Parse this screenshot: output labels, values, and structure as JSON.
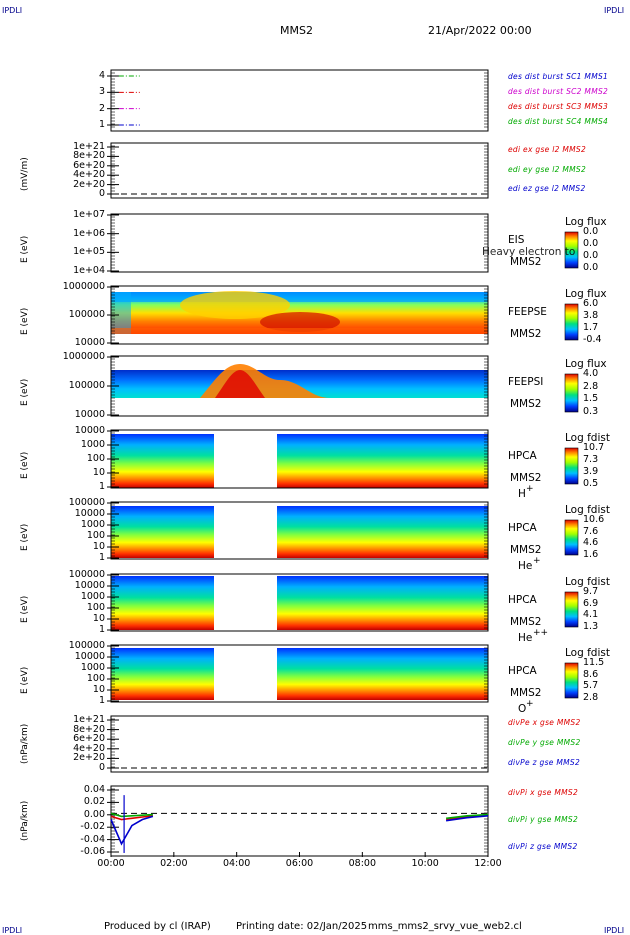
{
  "corners": {
    "tl": "IPDLI",
    "tr": "IPDLI",
    "bl": "IPDLI",
    "br": "IPDLI"
  },
  "header": {
    "mission": "MMS2",
    "date": "21/Apr/2022 00:00"
  },
  "footer": {
    "produced_by": "Produced by cl (IRAP)",
    "printing_date": "Printing date: 02/Jan/2025",
    "file": "mms_mms2_srvy_vue_web2.cl"
  },
  "colors": {
    "blue": "#0000cc",
    "red": "#dd0000",
    "green": "#00aa00",
    "magenta": "#cc00cc"
  },
  "x_ticks": [
    "00:00",
    "02:00",
    "04:00",
    "06:00",
    "08:00",
    "10:00",
    "12:00"
  ],
  "panels": {
    "des": {
      "y_ticks": [
        "4",
        "3",
        "2",
        "1"
      ],
      "legend": [
        "des dist burst SC1 MMS1",
        "des dist burst SC2 MMS2",
        "des dist burst SC3 MMS3",
        "des dist burst SC4 MMS4"
      ],
      "legend_colors": [
        "#0000cc",
        "#cc00cc",
        "#dd0000",
        "#00aa00"
      ]
    },
    "edi": {
      "ylabel": "(mV/m)",
      "y_ticks": [
        "1e+21",
        "8e+20",
        "6e+20",
        "4e+20",
        "2e+20",
        "0"
      ],
      "legend": [
        "edi ex gse l2 MMS2",
        "edi ey gse l2 MMS2",
        "edi ez gse l2 MMS2"
      ],
      "legend_colors": [
        "#dd0000",
        "#00aa00",
        "#0000cc"
      ]
    },
    "eis": {
      "ylabel": "E (eV)",
      "y_ticks": [
        "1e+07",
        "1e+06",
        "1e+05",
        "1e+04"
      ],
      "overlay": "Heavy electron to",
      "name": "EIS",
      "sc": "MMS2",
      "cb_title": "Log flux",
      "cb_values": [
        "0.0",
        "0.0",
        "0.0",
        "0.0"
      ]
    },
    "feepse": {
      "ylabel": "E (eV)",
      "y_ticks": [
        "1000000",
        "100000",
        "10000"
      ],
      "name": "FEEPSE",
      "sc": "MMS2",
      "cb_title": "Log flux",
      "cb_values": [
        "6.0",
        "3.8",
        "1.7",
        "-0.4"
      ]
    },
    "feepsi": {
      "ylabel": "E (eV)",
      "y_ticks": [
        "1000000",
        "100000",
        "10000"
      ],
      "name": "FEEPSI",
      "sc": "MMS2",
      "cb_title": "Log flux",
      "cb_values": [
        "4.0",
        "2.8",
        "1.5",
        "0.3"
      ]
    },
    "hpca_h": {
      "ylabel": "E (eV)",
      "y_ticks": [
        "10000",
        "1000",
        "100",
        "10",
        "1"
      ],
      "name": "HPCA",
      "sc": "MMS2",
      "species": "H",
      "charge": "+",
      "cb_title": "Log fdist",
      "cb_values": [
        "10.7",
        "7.3",
        "3.9",
        "0.5"
      ]
    },
    "hpca_he": {
      "ylabel": "E (eV)",
      "y_ticks": [
        "100000",
        "10000",
        "1000",
        "100",
        "10",
        "1"
      ],
      "name": "HPCA",
      "sc": "MMS2",
      "species": "He",
      "charge": "+",
      "cb_title": "Log fdist",
      "cb_values": [
        "10.6",
        "7.6",
        "4.6",
        "1.6"
      ]
    },
    "hpca_hepp": {
      "ylabel": "E (eV)",
      "y_ticks": [
        "100000",
        "10000",
        "1000",
        "100",
        "10",
        "1"
      ],
      "name": "HPCA",
      "sc": "MMS2",
      "species": "He",
      "charge": "++",
      "cb_title": "Log fdist",
      "cb_values": [
        "9.7",
        "6.9",
        "4.1",
        "1.3"
      ]
    },
    "hpca_o": {
      "ylabel": "E (eV)",
      "y_ticks": [
        "100000",
        "10000",
        "1000",
        "100",
        "10",
        "1"
      ],
      "name": "HPCA",
      "sc": "MMS2",
      "species": "O",
      "charge": "+",
      "cb_title": "Log fdist",
      "cb_values": [
        "11.5",
        "8.6",
        "5.7",
        "2.8"
      ]
    },
    "divpe": {
      "ylabel": "(nPa/km)",
      "y_ticks": [
        "1e+21",
        "8e+20",
        "6e+20",
        "4e+20",
        "2e+20",
        "0"
      ],
      "legend": [
        "divPe x gse MMS2",
        "divPe y gse MMS2",
        "divPe z gse MMS2"
      ],
      "legend_colors": [
        "#dd0000",
        "#00aa00",
        "#0000cc"
      ]
    },
    "divpi": {
      "ylabel": "(nPa/km)",
      "y_ticks": [
        "0.04",
        "0.02",
        "0.00",
        "-0.02",
        "-0.04",
        "-0.06"
      ],
      "legend": [
        "divPi x gse MMS2",
        "divPi y gse MMS2",
        "divPi z gse MMS2"
      ],
      "legend_colors": [
        "#dd0000",
        "#00aa00",
        "#0000cc"
      ]
    }
  },
  "chart_data": [
    {
      "type": "line",
      "title": "des dist burst",
      "x": [
        "00:00",
        "12:00"
      ],
      "ylim": [
        0.5,
        4.5
      ],
      "series": [
        {
          "name": "des dist burst SC1 MMS1",
          "x": [
            "00:15",
            "00:55"
          ],
          "values": [
            4,
            4
          ]
        },
        {
          "name": "des dist burst SC2 MMS2",
          "x": [
            "00:15",
            "00:55"
          ],
          "values": [
            3,
            3
          ]
        },
        {
          "name": "des dist burst SC3 MMS3",
          "x": [
            "00:15",
            "00:55"
          ],
          "values": [
            2,
            2
          ]
        },
        {
          "name": "des dist burst SC4 MMS4",
          "x": [
            "00:15",
            "00:55"
          ],
          "values": [
            1,
            1
          ]
        }
      ]
    },
    {
      "type": "line",
      "title": "edi e gse l2 MMS2",
      "ylabel": "(mV/m)",
      "ylim": [
        0,
        1e+21
      ],
      "series": []
    },
    {
      "type": "heatmap",
      "title": "EIS",
      "ylabel": "E (eV)",
      "ylim": [
        10000.0,
        10000000.0
      ],
      "log_y": true,
      "colorbar": "Log flux"
    },
    {
      "type": "heatmap",
      "title": "FEEPSE",
      "ylabel": "E (eV)",
      "ylim": [
        10000.0,
        1000000.0
      ],
      "log_y": true,
      "colorbar": "Log flux"
    },
    {
      "type": "heatmap",
      "title": "FEEPSI",
      "ylabel": "E (eV)",
      "ylim": [
        10000.0,
        1000000.0
      ],
      "log_y": true,
      "colorbar": "Log flux"
    },
    {
      "type": "heatmap",
      "title": "HPCA H+",
      "ylabel": "E (eV)",
      "ylim": [
        1,
        40000.0
      ],
      "log_y": true,
      "colorbar": "Log fdist",
      "data_gap": [
        "03:15",
        "05:20"
      ]
    },
    {
      "type": "heatmap",
      "title": "HPCA He+",
      "ylabel": "E (eV)",
      "ylim": [
        1,
        100000.0
      ],
      "log_y": true,
      "colorbar": "Log fdist",
      "data_gap": [
        "03:15",
        "05:20"
      ]
    },
    {
      "type": "heatmap",
      "title": "HPCA He++",
      "ylabel": "E (eV)",
      "ylim": [
        1,
        100000.0
      ],
      "log_y": true,
      "colorbar": "Log fdist",
      "data_gap": [
        "03:15",
        "05:20"
      ]
    },
    {
      "type": "heatmap",
      "title": "HPCA O+",
      "ylabel": "E (eV)",
      "ylim": [
        1,
        100000.0
      ],
      "log_y": true,
      "colorbar": "Log fdist",
      "data_gap": [
        "03:15",
        "05:20"
      ]
    },
    {
      "type": "line",
      "title": "divPe gse MMS2",
      "ylabel": "(nPa/km)",
      "ylim": [
        0,
        1e+21
      ],
      "series": []
    },
    {
      "type": "line",
      "title": "divPi gse MMS2",
      "ylabel": "(nPa/km)",
      "ylim": [
        -0.07,
        0.045
      ],
      "series": [
        {
          "name": "divPi x gse MMS2",
          "x": [
            "00:00",
            "00:20",
            "00:40",
            "01:00",
            "01:20",
            "10:40",
            "11:20",
            "12:00"
          ],
          "values": [
            -0.005,
            -0.01,
            -0.008,
            -0.006,
            -0.004,
            -0.01,
            -0.005,
            -0.003
          ]
        },
        {
          "name": "divPi y gse MMS2",
          "x": [
            "00:00",
            "00:20",
            "00:40",
            "01:00",
            "01:20",
            "10:40",
            "11:20",
            "12:00"
          ],
          "values": [
            0.0,
            -0.005,
            -0.004,
            -0.003,
            -0.002,
            -0.008,
            -0.004,
            -0.002
          ]
        },
        {
          "name": "divPi z gse MMS2",
          "x": [
            "00:00",
            "00:20",
            "00:40",
            "01:00",
            "01:20",
            "10:40",
            "11:20",
            "12:00"
          ],
          "values": [
            -0.01,
            -0.05,
            -0.02,
            -0.01,
            -0.005,
            -0.012,
            -0.007,
            -0.004
          ]
        }
      ]
    }
  ]
}
